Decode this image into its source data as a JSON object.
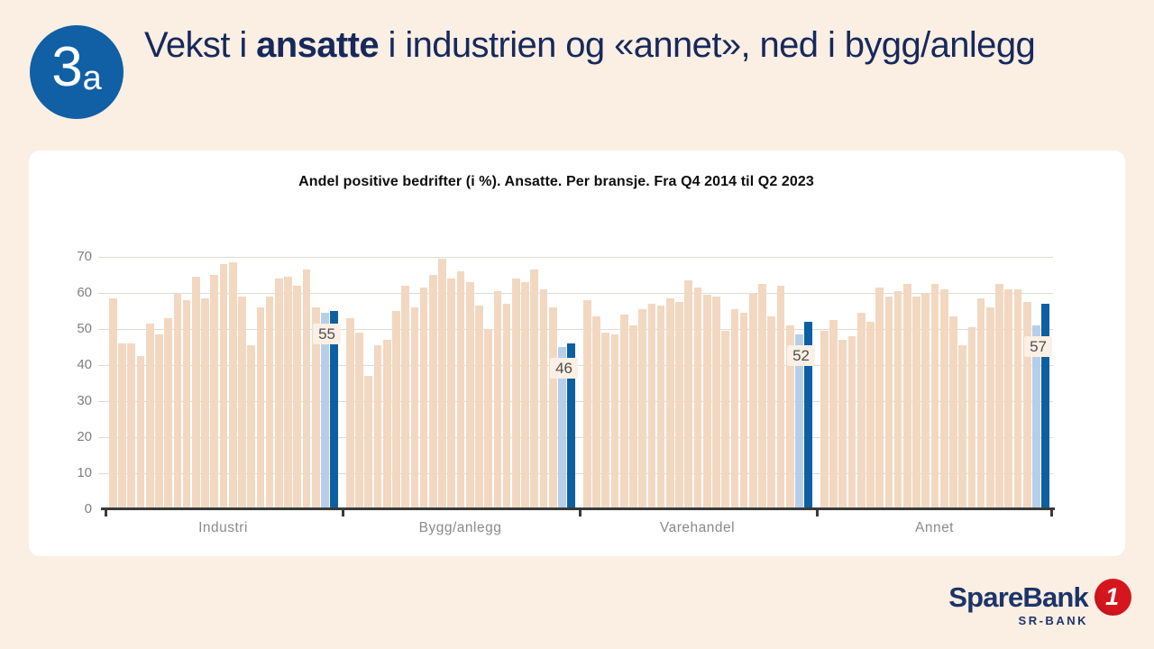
{
  "badge": {
    "number": "3",
    "suffix": "a"
  },
  "title": {
    "prefix": "Vekst i ",
    "emphasis": "ansatte",
    "suffix": " i industrien og «annet», ned i bygg/anlegg"
  },
  "chart_data": {
    "type": "bar",
    "title": "Andel positive bedrifter (i %). Ansatte. Per bransje. Fra Q4 2014 til Q2 2023",
    "ylabel": "",
    "xlabel": "",
    "ylim": [
      0,
      70
    ],
    "yticks": [
      0,
      10,
      20,
      30,
      40,
      50,
      60,
      70
    ],
    "grid": true,
    "period": "Fra Q4 2014 til Q2 2023",
    "note": "last two bars of each group are highlighted (previous quarter light blue, latest quarter dark blue); dark bar value shown in label",
    "groups": [
      {
        "label": "Industri",
        "highlight_label": 55,
        "values": [
          58.5,
          46,
          46,
          42.5,
          51.5,
          48.5,
          53,
          60,
          58,
          64.5,
          58.5,
          65,
          68,
          68.5,
          59,
          45.5,
          56,
          59,
          64,
          64.5,
          62,
          66.5,
          56,
          54.5,
          55
        ]
      },
      {
        "label": "Bygg/anlegg",
        "highlight_label": 46,
        "values": [
          53,
          49,
          37,
          45.5,
          47,
          55,
          62,
          56,
          61.5,
          65,
          69.5,
          64,
          66,
          63,
          56.5,
          50,
          60.5,
          57,
          64,
          63,
          66.5,
          61,
          56,
          45,
          46
        ]
      },
      {
        "label": "Varehandel",
        "highlight_label": 52,
        "values": [
          58,
          53.5,
          49,
          48.5,
          54,
          51,
          55.5,
          57,
          56.5,
          58.5,
          57.5,
          63.5,
          61.5,
          59.5,
          59,
          49.5,
          55.5,
          54.5,
          60,
          62.5,
          53.5,
          62,
          51,
          48.5,
          52
        ]
      },
      {
        "label": "Annet",
        "highlight_label": 57,
        "values": [
          49.5,
          52.5,
          47,
          48,
          54.5,
          52,
          61.5,
          59,
          60.5,
          62.5,
          59,
          60,
          62.5,
          61,
          53.5,
          45.5,
          50.5,
          58.5,
          56,
          62.5,
          61,
          61,
          57.5,
          51,
          57
        ]
      }
    ]
  },
  "logo": {
    "name": "SpareBank",
    "one": "1",
    "subtitle": "SR-BANK"
  },
  "colors": {
    "page_bg": "#fbeee2",
    "card_bg": "#ffffff",
    "navy": "#16295c",
    "badge_blue": "#115fa5",
    "bar_peach": "#f2d8c1",
    "bar_prev": "#b7cee8",
    "bar_latest": "#0d5fa4",
    "grid": "#d8ded2",
    "axis": "#3a3a3a",
    "label_box_bg": "#fcefe5",
    "text_gray": "#7f7f7f",
    "logo_navy": "#1c3469",
    "logo_red": "#d6161e"
  }
}
